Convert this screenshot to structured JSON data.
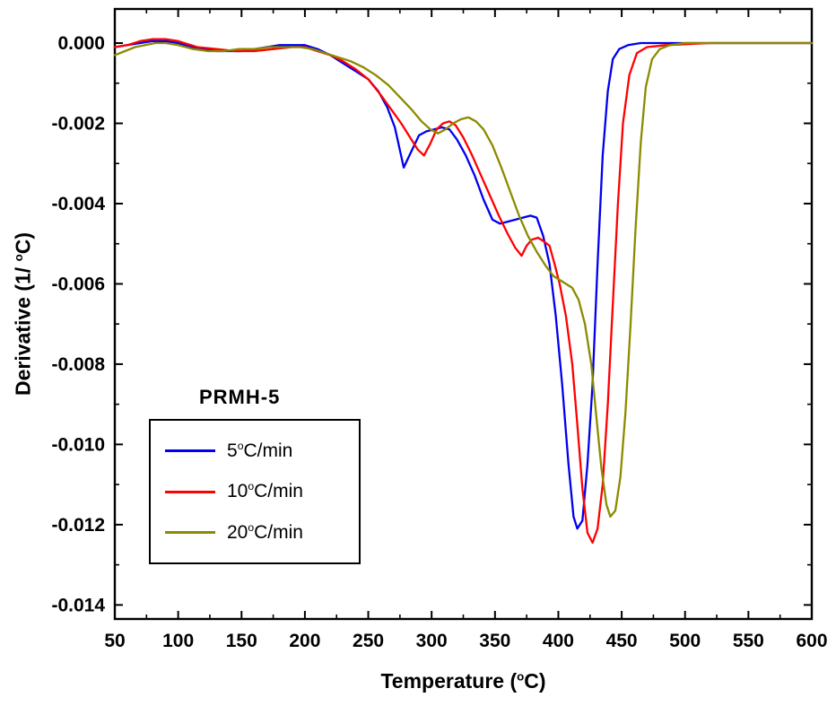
{
  "chart_data": {
    "type": "line",
    "sample_label": "PRMH-5",
    "xlabel": {
      "prefix": "Temperature (",
      "sup": "o",
      "suffix": "C)"
    },
    "ylabel": {
      "prefix": "Derivative (1/ ",
      "sup": "o",
      "suffix": "C)"
    },
    "xlim": [
      50,
      600
    ],
    "ylim": [
      -0.01435,
      0.00085
    ],
    "xticks": [
      50,
      100,
      150,
      200,
      250,
      300,
      350,
      400,
      450,
      500,
      550,
      600
    ],
    "x_tick_labels": [
      "50",
      "100",
      "150",
      "200",
      "250",
      "300",
      "350",
      "400",
      "450",
      "500",
      "550",
      "600"
    ],
    "yticks": [
      0,
      -0.002,
      -0.004,
      -0.006,
      -0.008,
      -0.01,
      -0.012,
      -0.014
    ],
    "y_tick_labels": [
      "0.000",
      "-0.002",
      "-0.004",
      "-0.006",
      "-0.008",
      "-0.010",
      "-0.012",
      "-0.014"
    ],
    "x_minor_step": 25,
    "y_minor_step": 0.001,
    "grid": false,
    "legend_position": "lower-left",
    "legend": {
      "items": [
        {
          "num": "5",
          "sup": "o",
          "suffix": "C/min",
          "color": "#0000EE"
        },
        {
          "num": "10",
          "sup": "o",
          "suffix": "C/min",
          "color": "#FF0000"
        },
        {
          "num": "20",
          "sup": "o",
          "suffix": "C/min",
          "color": "#8B8B00"
        }
      ]
    },
    "series": [
      {
        "name": "5 C/min",
        "color": "#0000EE",
        "x": [
          50,
          60,
          70,
          80,
          90,
          100,
          110,
          120,
          130,
          140,
          150,
          160,
          170,
          180,
          190,
          200,
          210,
          220,
          230,
          240,
          250,
          258,
          265,
          271,
          278,
          284,
          290,
          296,
          302,
          308,
          314,
          320,
          327,
          334,
          341,
          348,
          354,
          360,
          366,
          372,
          378,
          383,
          388,
          393,
          398,
          403,
          408,
          412,
          415,
          419,
          423,
          427,
          431,
          435,
          439,
          443,
          448,
          455,
          465,
          480,
          520,
          600
        ],
        "y": [
          -0.0001,
          -5e-05,
          0,
          5e-05,
          5e-05,
          0,
          -0.0001,
          -0.00015,
          -0.0002,
          -0.0002,
          -0.0002,
          -0.00015,
          -0.0001,
          -5e-05,
          -5e-05,
          -5e-05,
          -0.00015,
          -0.0003,
          -0.0005,
          -0.0007,
          -0.0009,
          -0.0012,
          -0.0016,
          -0.0021,
          -0.0031,
          -0.0027,
          -0.0023,
          -0.0022,
          -0.00215,
          -0.0021,
          -0.00215,
          -0.0024,
          -0.0028,
          -0.0033,
          -0.0039,
          -0.0044,
          -0.0045,
          -0.00445,
          -0.0044,
          -0.00435,
          -0.0043,
          -0.00435,
          -0.0048,
          -0.0055,
          -0.0068,
          -0.0085,
          -0.0105,
          -0.0118,
          -0.0121,
          -0.0119,
          -0.0105,
          -0.0085,
          -0.0055,
          -0.0028,
          -0.0012,
          -0.0004,
          -0.00015,
          -5e-05,
          0,
          0,
          0,
          0
        ]
      },
      {
        "name": "10 C/min",
        "color": "#FF0000",
        "x": [
          50,
          60,
          70,
          80,
          90,
          100,
          115,
          130,
          145,
          160,
          175,
          190,
          200,
          210,
          220,
          230,
          240,
          250,
          260,
          268,
          276,
          283,
          289,
          294,
          299,
          304,
          309,
          314,
          319,
          325,
          332,
          339,
          346,
          353,
          360,
          366,
          371,
          375,
          379,
          384,
          389,
          393,
          397,
          401,
          406,
          411,
          415,
          419,
          423,
          427,
          431,
          435,
          439,
          443,
          447,
          451,
          456,
          462,
          470,
          485,
          520,
          600
        ],
        "y": [
          -0.0001,
          -5e-05,
          5e-05,
          0.0001,
          0.0001,
          5e-05,
          -0.0001,
          -0.00015,
          -0.0002,
          -0.0002,
          -0.00015,
          -0.0001,
          -0.0001,
          -0.0002,
          -0.0003,
          -0.00045,
          -0.00065,
          -0.0009,
          -0.0013,
          -0.00165,
          -0.002,
          -0.00235,
          -0.00265,
          -0.0028,
          -0.0025,
          -0.00215,
          -0.002,
          -0.00195,
          -0.00205,
          -0.00235,
          -0.0028,
          -0.0033,
          -0.0038,
          -0.0043,
          -0.00475,
          -0.0051,
          -0.0053,
          -0.00505,
          -0.0049,
          -0.00485,
          -0.00495,
          -0.00505,
          -0.0055,
          -0.006,
          -0.0068,
          -0.008,
          -0.0095,
          -0.0111,
          -0.0122,
          -0.01245,
          -0.0121,
          -0.011,
          -0.009,
          -0.0065,
          -0.004,
          -0.002,
          -0.0008,
          -0.00025,
          -0.0001,
          -5e-05,
          0,
          0
        ]
      },
      {
        "name": "20 C/min",
        "color": "#8B8B00",
        "x": [
          50,
          58,
          66,
          74,
          82,
          90,
          100,
          112,
          124,
          136,
          148,
          160,
          172,
          184,
          196,
          206,
          216,
          226,
          236,
          246,
          256,
          266,
          275,
          284,
          292,
          299,
          305,
          311,
          317,
          323,
          329,
          335,
          341,
          348,
          355,
          362,
          369,
          376,
          383,
          390,
          396,
          401,
          406,
          411,
          416,
          421,
          426,
          430,
          434,
          438,
          441,
          445,
          449,
          453,
          457,
          461,
          465,
          469,
          474,
          480,
          488,
          500,
          530,
          600
        ],
        "y": [
          -0.0003,
          -0.0002,
          -0.0001,
          -5e-05,
          0,
          0,
          -5e-05,
          -0.00015,
          -0.0002,
          -0.0002,
          -0.00015,
          -0.00015,
          -0.0001,
          -0.0001,
          -0.0001,
          -0.00015,
          -0.00025,
          -0.00035,
          -0.00045,
          -0.0006,
          -0.0008,
          -0.00105,
          -0.00135,
          -0.00165,
          -0.00195,
          -0.00215,
          -0.00225,
          -0.00215,
          -0.002,
          -0.0019,
          -0.00185,
          -0.00195,
          -0.00215,
          -0.00255,
          -0.0031,
          -0.0037,
          -0.0043,
          -0.0048,
          -0.0052,
          -0.00555,
          -0.0058,
          -0.0059,
          -0.006,
          -0.0061,
          -0.0064,
          -0.007,
          -0.008,
          -0.0093,
          -0.0106,
          -0.0115,
          -0.0118,
          -0.01165,
          -0.0108,
          -0.0092,
          -0.007,
          -0.0046,
          -0.0025,
          -0.0011,
          -0.0004,
          -0.00015,
          -5e-05,
          0,
          0,
          0
        ]
      }
    ]
  }
}
